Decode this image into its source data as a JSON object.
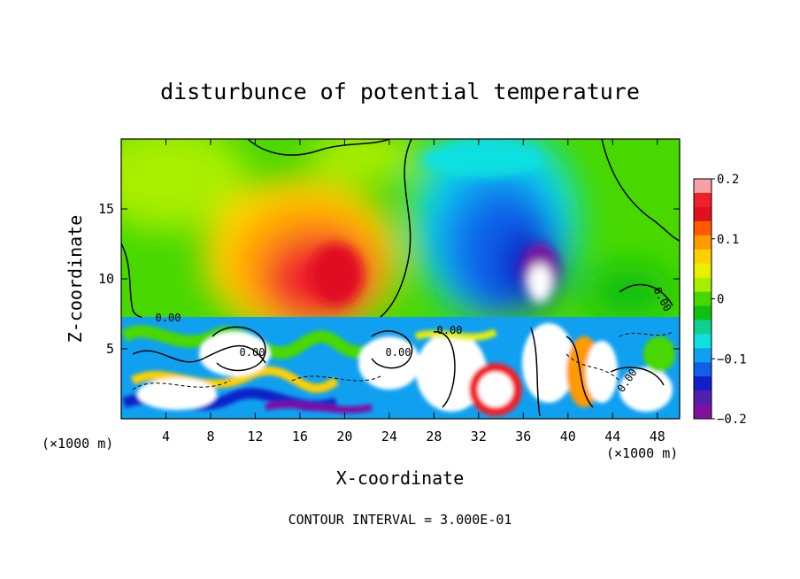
{
  "chart_data": {
    "type": "heatmap",
    "title": "disturbunce of potential temperature",
    "xlabel": "X-coordinate",
    "ylabel": "Z-coordinate",
    "x_unit": "(×1000 m)",
    "x_unit_right": "(×1000 m)",
    "xlim": [
      0,
      50
    ],
    "ylim": [
      0,
      20
    ],
    "x_ticks": [
      4,
      8,
      12,
      16,
      20,
      24,
      28,
      32,
      36,
      40,
      44,
      48
    ],
    "y_ticks": [
      5,
      10,
      15
    ],
    "colorbar": {
      "range": [
        -0.2,
        0.2
      ],
      "ticks": [
        "0.2",
        "0.1",
        "0",
        "−0.1",
        "−0.2"
      ],
      "tick_values": [
        0.2,
        0.1,
        0,
        -0.1,
        -0.2
      ],
      "colors": [
        "#f7a0a8",
        "#f0202a",
        "#e01020",
        "#ff5a00",
        "#ff9a00",
        "#ffd000",
        "#e8f000",
        "#a8ee00",
        "#48d800",
        "#10c010",
        "#10d090",
        "#10e0e0",
        "#10a0f0",
        "#1060e8",
        "#1020c8",
        "#5020b0",
        "#8010a0"
      ]
    },
    "contour_label": "0.00",
    "contour_interval_text": "CONTOUR INTERVAL = 3.000E-01",
    "colors": {
      "frame": "#000000",
      "background": "#ffffff"
    }
  }
}
